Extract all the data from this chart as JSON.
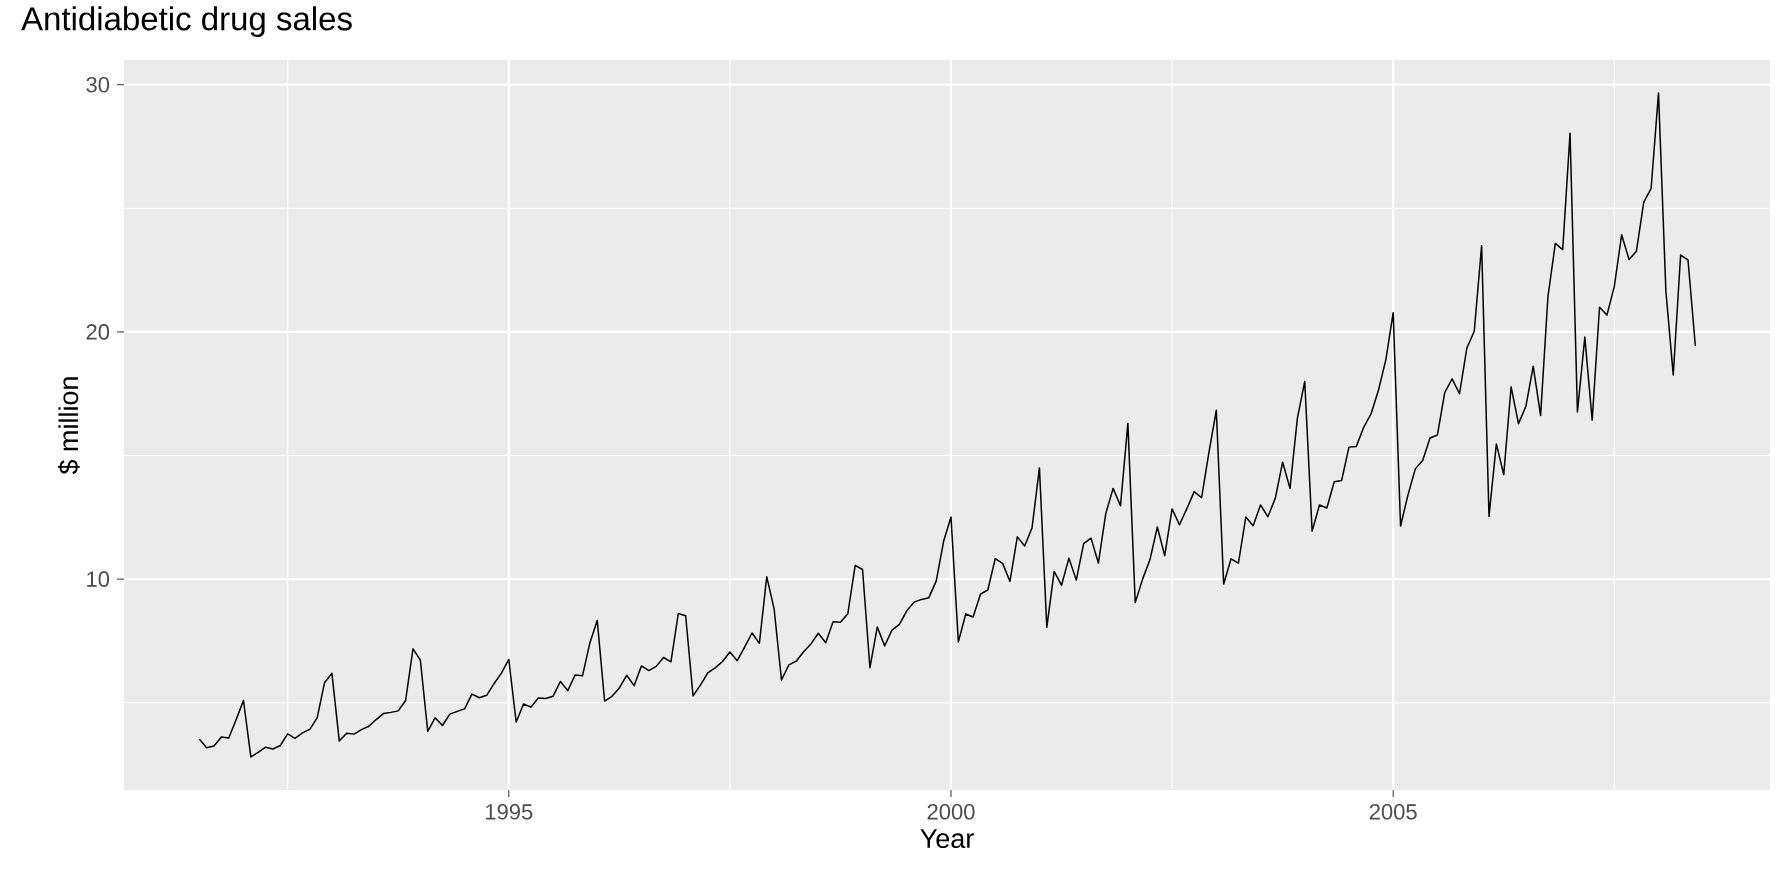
{
  "chart_data": {
    "type": "line",
    "title": "Antidiabetic drug sales",
    "xlabel": "Year",
    "ylabel": "$ million",
    "x": [
      "1991-07",
      "1991-08",
      "1991-09",
      "1991-10",
      "1991-11",
      "1991-12",
      "1992-01",
      "1992-02",
      "1992-03",
      "1992-04",
      "1992-05",
      "1992-06",
      "1992-07",
      "1992-08",
      "1992-09",
      "1992-10",
      "1992-11",
      "1992-12",
      "1993-01",
      "1993-02",
      "1993-03",
      "1993-04",
      "1993-05",
      "1993-06",
      "1993-07",
      "1993-08",
      "1993-09",
      "1993-10",
      "1993-11",
      "1993-12",
      "1994-01",
      "1994-02",
      "1994-03",
      "1994-04",
      "1994-05",
      "1994-06",
      "1994-07",
      "1994-08",
      "1994-09",
      "1994-10",
      "1994-11",
      "1994-12",
      "1995-01",
      "1995-02",
      "1995-03",
      "1995-04",
      "1995-05",
      "1995-06",
      "1995-07",
      "1995-08",
      "1995-09",
      "1995-10",
      "1995-11",
      "1995-12",
      "1996-01",
      "1996-02",
      "1996-03",
      "1996-04",
      "1996-05",
      "1996-06",
      "1996-07",
      "1996-08",
      "1996-09",
      "1996-10",
      "1996-11",
      "1996-12",
      "1997-01",
      "1997-02",
      "1997-03",
      "1997-04",
      "1997-05",
      "1997-06",
      "1997-07",
      "1997-08",
      "1997-09",
      "1997-10",
      "1997-11",
      "1997-12",
      "1998-01",
      "1998-02",
      "1998-03",
      "1998-04",
      "1998-05",
      "1998-06",
      "1998-07",
      "1998-08",
      "1998-09",
      "1998-10",
      "1998-11",
      "1998-12",
      "1999-01",
      "1999-02",
      "1999-03",
      "1999-04",
      "1999-05",
      "1999-06",
      "1999-07",
      "1999-08",
      "1999-09",
      "1999-10",
      "1999-11",
      "1999-12",
      "2000-01",
      "2000-02",
      "2000-03",
      "2000-04",
      "2000-05",
      "2000-06",
      "2000-07",
      "2000-08",
      "2000-09",
      "2000-10",
      "2000-11",
      "2000-12",
      "2001-01",
      "2001-02",
      "2001-03",
      "2001-04",
      "2001-05",
      "2001-06",
      "2001-07",
      "2001-08",
      "2001-09",
      "2001-10",
      "2001-11",
      "2001-12",
      "2002-01",
      "2002-02",
      "2002-03",
      "2002-04",
      "2002-05",
      "2002-06",
      "2002-07",
      "2002-08",
      "2002-09",
      "2002-10",
      "2002-11",
      "2002-12",
      "2003-01",
      "2003-02",
      "2003-03",
      "2003-04",
      "2003-05",
      "2003-06",
      "2003-07",
      "2003-08",
      "2003-09",
      "2003-10",
      "2003-11",
      "2003-12",
      "2004-01",
      "2004-02",
      "2004-03",
      "2004-04",
      "2004-05",
      "2004-06",
      "2004-07",
      "2004-08",
      "2004-09",
      "2004-10",
      "2004-11",
      "2004-12",
      "2005-01",
      "2005-02",
      "2005-03",
      "2005-04",
      "2005-05",
      "2005-06",
      "2005-07",
      "2005-08",
      "2005-09",
      "2005-10",
      "2005-11",
      "2005-12",
      "2006-01",
      "2006-02",
      "2006-03",
      "2006-04",
      "2006-05",
      "2006-06",
      "2006-07",
      "2006-08",
      "2006-09",
      "2006-10",
      "2006-11",
      "2006-12",
      "2007-01",
      "2007-02",
      "2007-03",
      "2007-04",
      "2007-05",
      "2007-06",
      "2007-07",
      "2007-08",
      "2007-09",
      "2007-10",
      "2007-11",
      "2007-12",
      "2008-01",
      "2008-02",
      "2008-03",
      "2008-04",
      "2008-05",
      "2008-06"
    ],
    "series": [
      {
        "color": "#000000",
        "values": [
          3.53,
          3.18,
          3.25,
          3.61,
          3.57,
          4.31,
          5.09,
          2.81,
          2.99,
          3.2,
          3.13,
          3.27,
          3.74,
          3.56,
          3.78,
          3.92,
          4.39,
          5.81,
          6.19,
          3.45,
          3.77,
          3.73,
          3.91,
          4.05,
          4.32,
          4.56,
          4.61,
          4.67,
          5.09,
          7.18,
          6.73,
          3.84,
          4.39,
          4.08,
          4.54,
          4.65,
          4.75,
          5.35,
          5.2,
          5.3,
          5.77,
          6.2,
          6.75,
          4.22,
          4.95,
          4.82,
          5.19,
          5.17,
          5.26,
          5.86,
          5.49,
          6.12,
          6.09,
          7.42,
          8.33,
          5.07,
          5.26,
          5.6,
          6.11,
          5.69,
          6.49,
          6.3,
          6.47,
          6.83,
          6.65,
          8.61,
          8.52,
          5.28,
          5.71,
          6.21,
          6.41,
          6.67,
          7.05,
          6.7,
          7.25,
          7.82,
          7.4,
          10.1,
          8.8,
          5.92,
          6.53,
          6.68,
          7.06,
          7.38,
          7.81,
          7.43,
          8.28,
          8.26,
          8.6,
          10.56,
          10.39,
          6.42,
          8.06,
          7.3,
          7.94,
          8.17,
          8.72,
          9.07,
          9.18,
          9.25,
          9.93,
          11.53,
          12.51,
          7.46,
          8.59,
          8.47,
          9.39,
          9.56,
          10.83,
          10.64,
          9.91,
          11.71,
          11.34,
          12.08,
          14.5,
          8.05,
          10.31,
          9.75,
          10.85,
          9.96,
          11.44,
          11.66,
          10.65,
          12.65,
          13.67,
          12.97,
          16.3,
          9.05,
          10.0,
          10.79,
          12.11,
          10.95,
          12.84,
          12.2,
          12.85,
          13.54,
          13.29,
          15.13,
          16.83,
          9.8,
          10.82,
          10.65,
          12.51,
          12.16,
          13.0,
          12.52,
          13.27,
          14.73,
          13.67,
          16.5,
          18.0,
          11.94,
          13.0,
          12.88,
          13.94,
          13.99,
          15.34,
          15.37,
          16.14,
          16.69,
          17.64,
          18.87,
          20.78,
          12.15,
          13.4,
          14.46,
          14.8,
          15.71,
          15.83,
          17.55,
          18.1,
          17.5,
          19.35,
          20.03,
          23.49,
          12.54,
          15.47,
          14.23,
          17.78,
          16.29,
          16.98,
          18.61,
          16.62,
          21.43,
          23.58,
          23.33,
          28.04,
          16.76,
          19.79,
          16.43,
          21.0,
          20.68,
          21.83,
          23.93,
          22.93,
          23.26,
          25.25,
          25.81,
          29.67,
          21.65,
          18.26,
          23.11,
          22.91,
          19.43
        ]
      }
    ],
    "xlim": [
      "1990-08-25",
      "2009-04-05"
    ],
    "xticks": [
      {
        "value": "1992-07",
        "label": null
      },
      "1995",
      {
        "value": "1997-07",
        "label": null
      },
      "2000",
      {
        "value": "2002-07",
        "label": null
      },
      "2005",
      {
        "value": "2007-07",
        "label": null
      }
    ],
    "ylim": [
      1.47,
      31.0
    ],
    "yticks": [
      {
        "value": 5,
        "label": null
      },
      10,
      {
        "value": 15,
        "label": null
      },
      20,
      {
        "value": 25,
        "label": null
      },
      30
    ],
    "grid": true,
    "marker": "none",
    "line_style": "solid"
  }
}
